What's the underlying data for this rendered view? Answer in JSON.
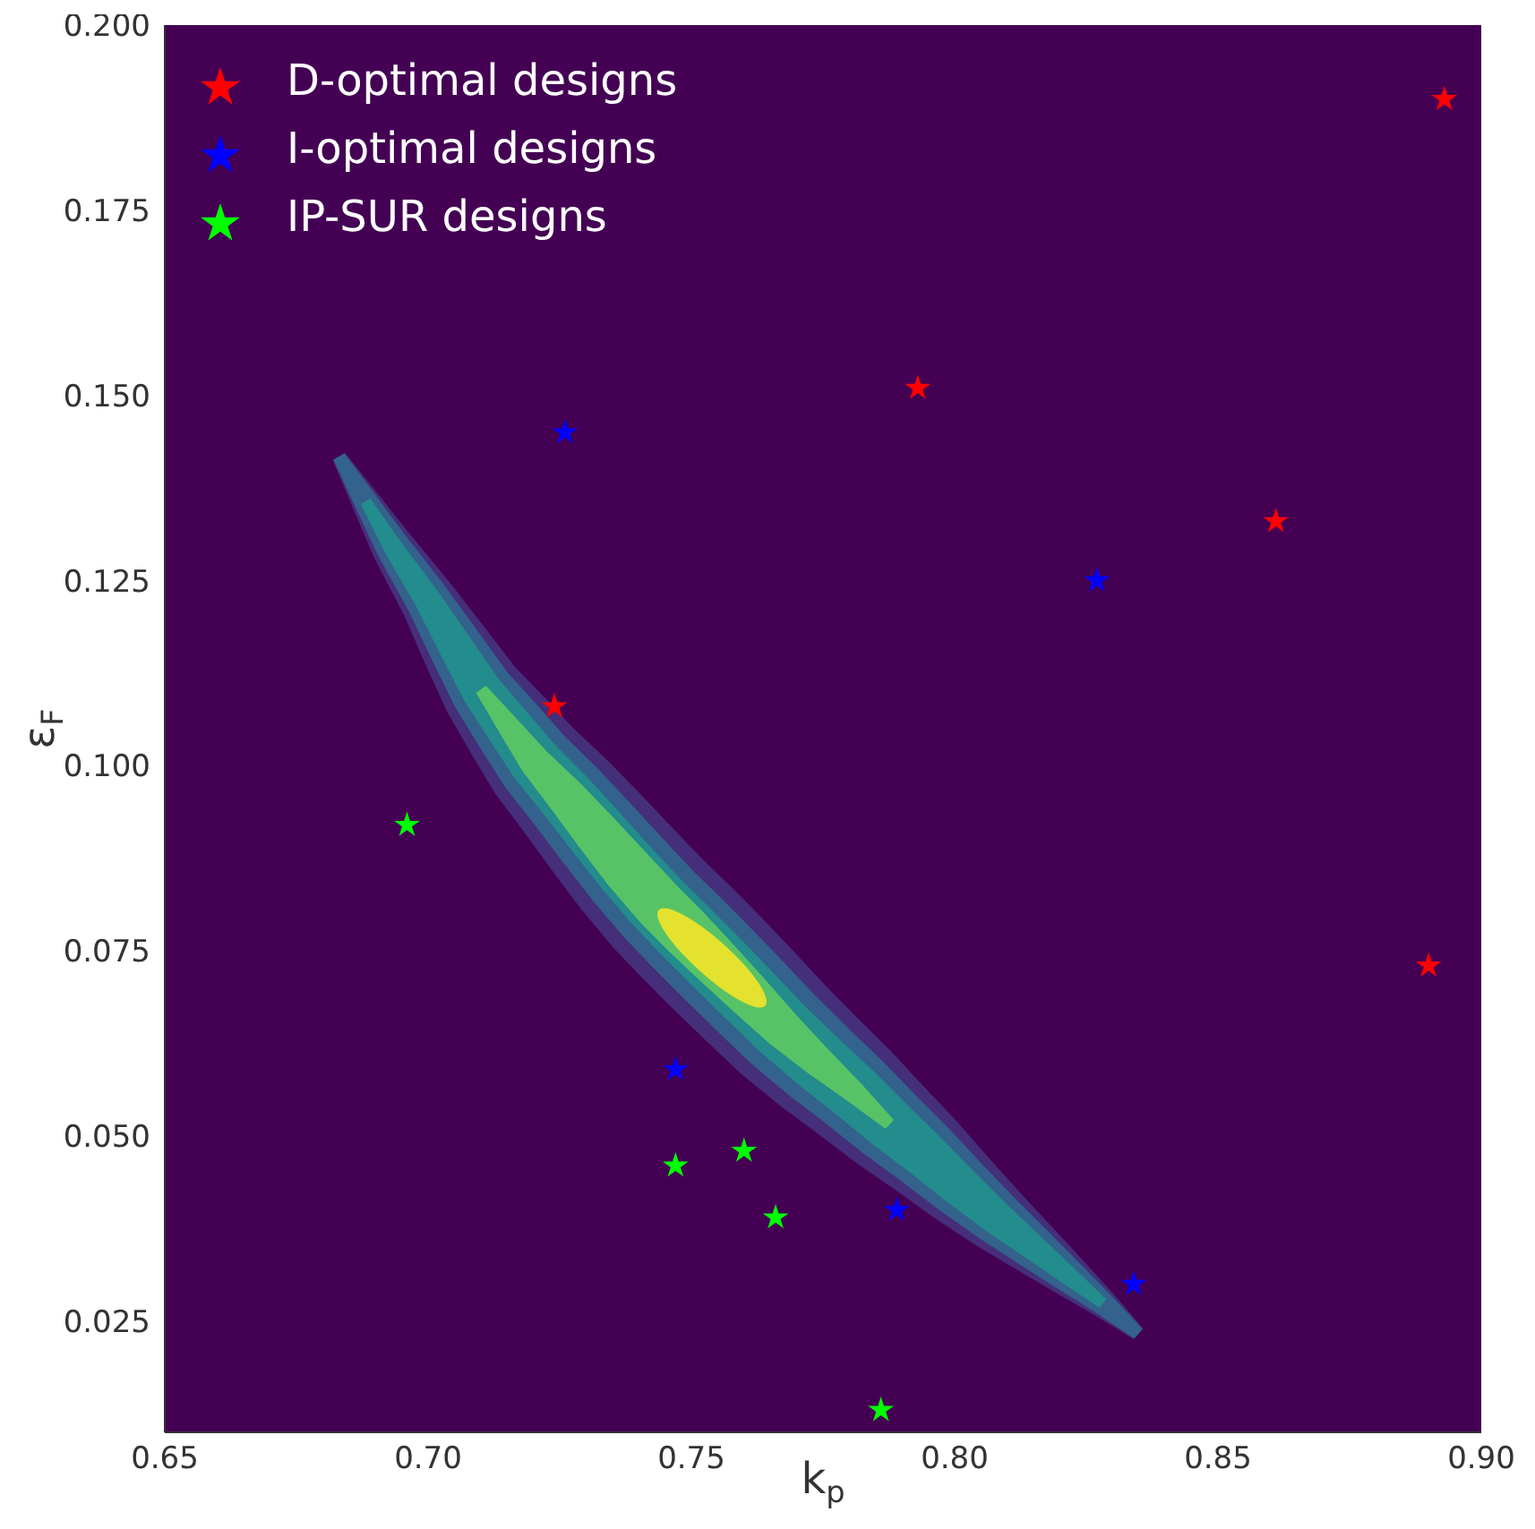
{
  "chart_data": {
    "type": "scatter",
    "xlabel": "k$_{p}$",
    "ylabel": "ε$_{F}$",
    "xlim": [
      0.65,
      0.9
    ],
    "ylim": [
      0.01,
      0.2
    ],
    "xticks": [
      {
        "value": 0.65,
        "label": "0.65"
      },
      {
        "value": 0.7,
        "label": "0.70"
      },
      {
        "value": 0.75,
        "label": "0.75"
      },
      {
        "value": 0.8,
        "label": "0.80"
      },
      {
        "value": 0.85,
        "label": "0.85"
      },
      {
        "value": 0.9,
        "label": "0.90"
      }
    ],
    "yticks": [
      {
        "value": 0.025,
        "label": "0.025"
      },
      {
        "value": 0.05,
        "label": "0.050"
      },
      {
        "value": 0.075,
        "label": "0.075"
      },
      {
        "value": 0.1,
        "label": "0.100"
      },
      {
        "value": 0.125,
        "label": "0.125"
      },
      {
        "value": 0.15,
        "label": "0.150"
      },
      {
        "value": 0.175,
        "label": "0.175"
      },
      {
        "value": 0.2,
        "label": "0.200"
      }
    ],
    "marker": "star",
    "legend": "top left",
    "series": [
      {
        "name": "D-optimal designs",
        "color": "#ff0000",
        "x": [
          0.893,
          0.793,
          0.861,
          0.724,
          0.89
        ],
        "values": [
          0.19,
          0.151,
          0.133,
          0.108,
          0.073
        ]
      },
      {
        "name": "I-optimal designs",
        "color": "#0000ff",
        "x": [
          0.726,
          0.827,
          0.747,
          0.789,
          0.834
        ],
        "values": [
          0.145,
          0.125,
          0.059,
          0.04,
          0.03
        ]
      },
      {
        "name": "IP-SUR designs",
        "color": "#00ff00",
        "x": [
          0.696,
          0.747,
          0.76,
          0.766,
          0.786
        ],
        "values": [
          0.092,
          0.046,
          0.048,
          0.039,
          0.013
        ]
      }
    ]
  }
}
